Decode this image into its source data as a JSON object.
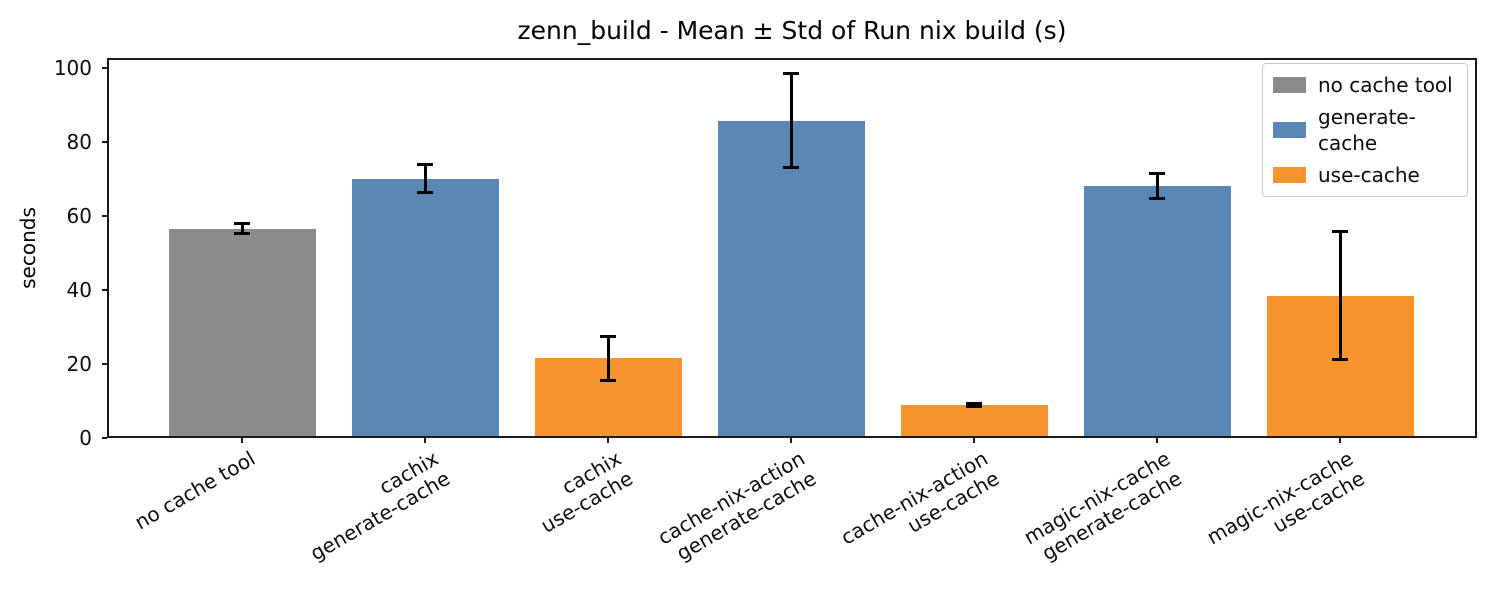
{
  "chart_data": {
    "type": "bar",
    "title": "zenn_build - Mean ± Std of Run nix build (s)",
    "ylabel": "seconds",
    "xlabel": "",
    "ylim": [
      0,
      102.7
    ],
    "yticks": [
      0,
      20,
      40,
      60,
      80,
      100
    ],
    "grid": false,
    "error_bars": true,
    "legend_position": "upper right",
    "legend": [
      {
        "label": "no cache tool",
        "color": "#8b8b8b"
      },
      {
        "label": "generate-cache",
        "color": "#5b87b5"
      },
      {
        "label": "use-cache",
        "color": "#f7942d"
      }
    ],
    "categories": [
      "no cache tool",
      "cachix\ngenerate-cache",
      "cachix\nuse-cache",
      "cache-nix-action\ngenerate-cache",
      "cache-nix-action\nuse-cache",
      "magic-nix-cache\ngenerate-cache",
      "magic-nix-cache\nuse-cache"
    ],
    "bars": [
      {
        "label_lines": [
          "no cache tool"
        ],
        "group": "no cache tool",
        "mean": 56.6,
        "std": 1.3
      },
      {
        "label_lines": [
          "cachix",
          "generate-cache"
        ],
        "group": "generate-cache",
        "mean": 70.1,
        "std": 3.8
      },
      {
        "label_lines": [
          "cachix",
          "use-cache"
        ],
        "group": "use-cache",
        "mean": 21.5,
        "std": 6.0
      },
      {
        "label_lines": [
          "cache-nix-action",
          "generate-cache"
        ],
        "group": "generate-cache",
        "mean": 85.8,
        "std": 12.8
      },
      {
        "label_lines": [
          "cache-nix-action",
          "use-cache"
        ],
        "group": "use-cache",
        "mean": 8.9,
        "std": 0.4
      },
      {
        "label_lines": [
          "magic-nix-cache",
          "generate-cache"
        ],
        "group": "generate-cache",
        "mean": 68.0,
        "std": 3.4
      },
      {
        "label_lines": [
          "magic-nix-cache",
          "use-cache"
        ],
        "group": "use-cache",
        "mean": 38.4,
        "std": 17.3
      }
    ]
  }
}
